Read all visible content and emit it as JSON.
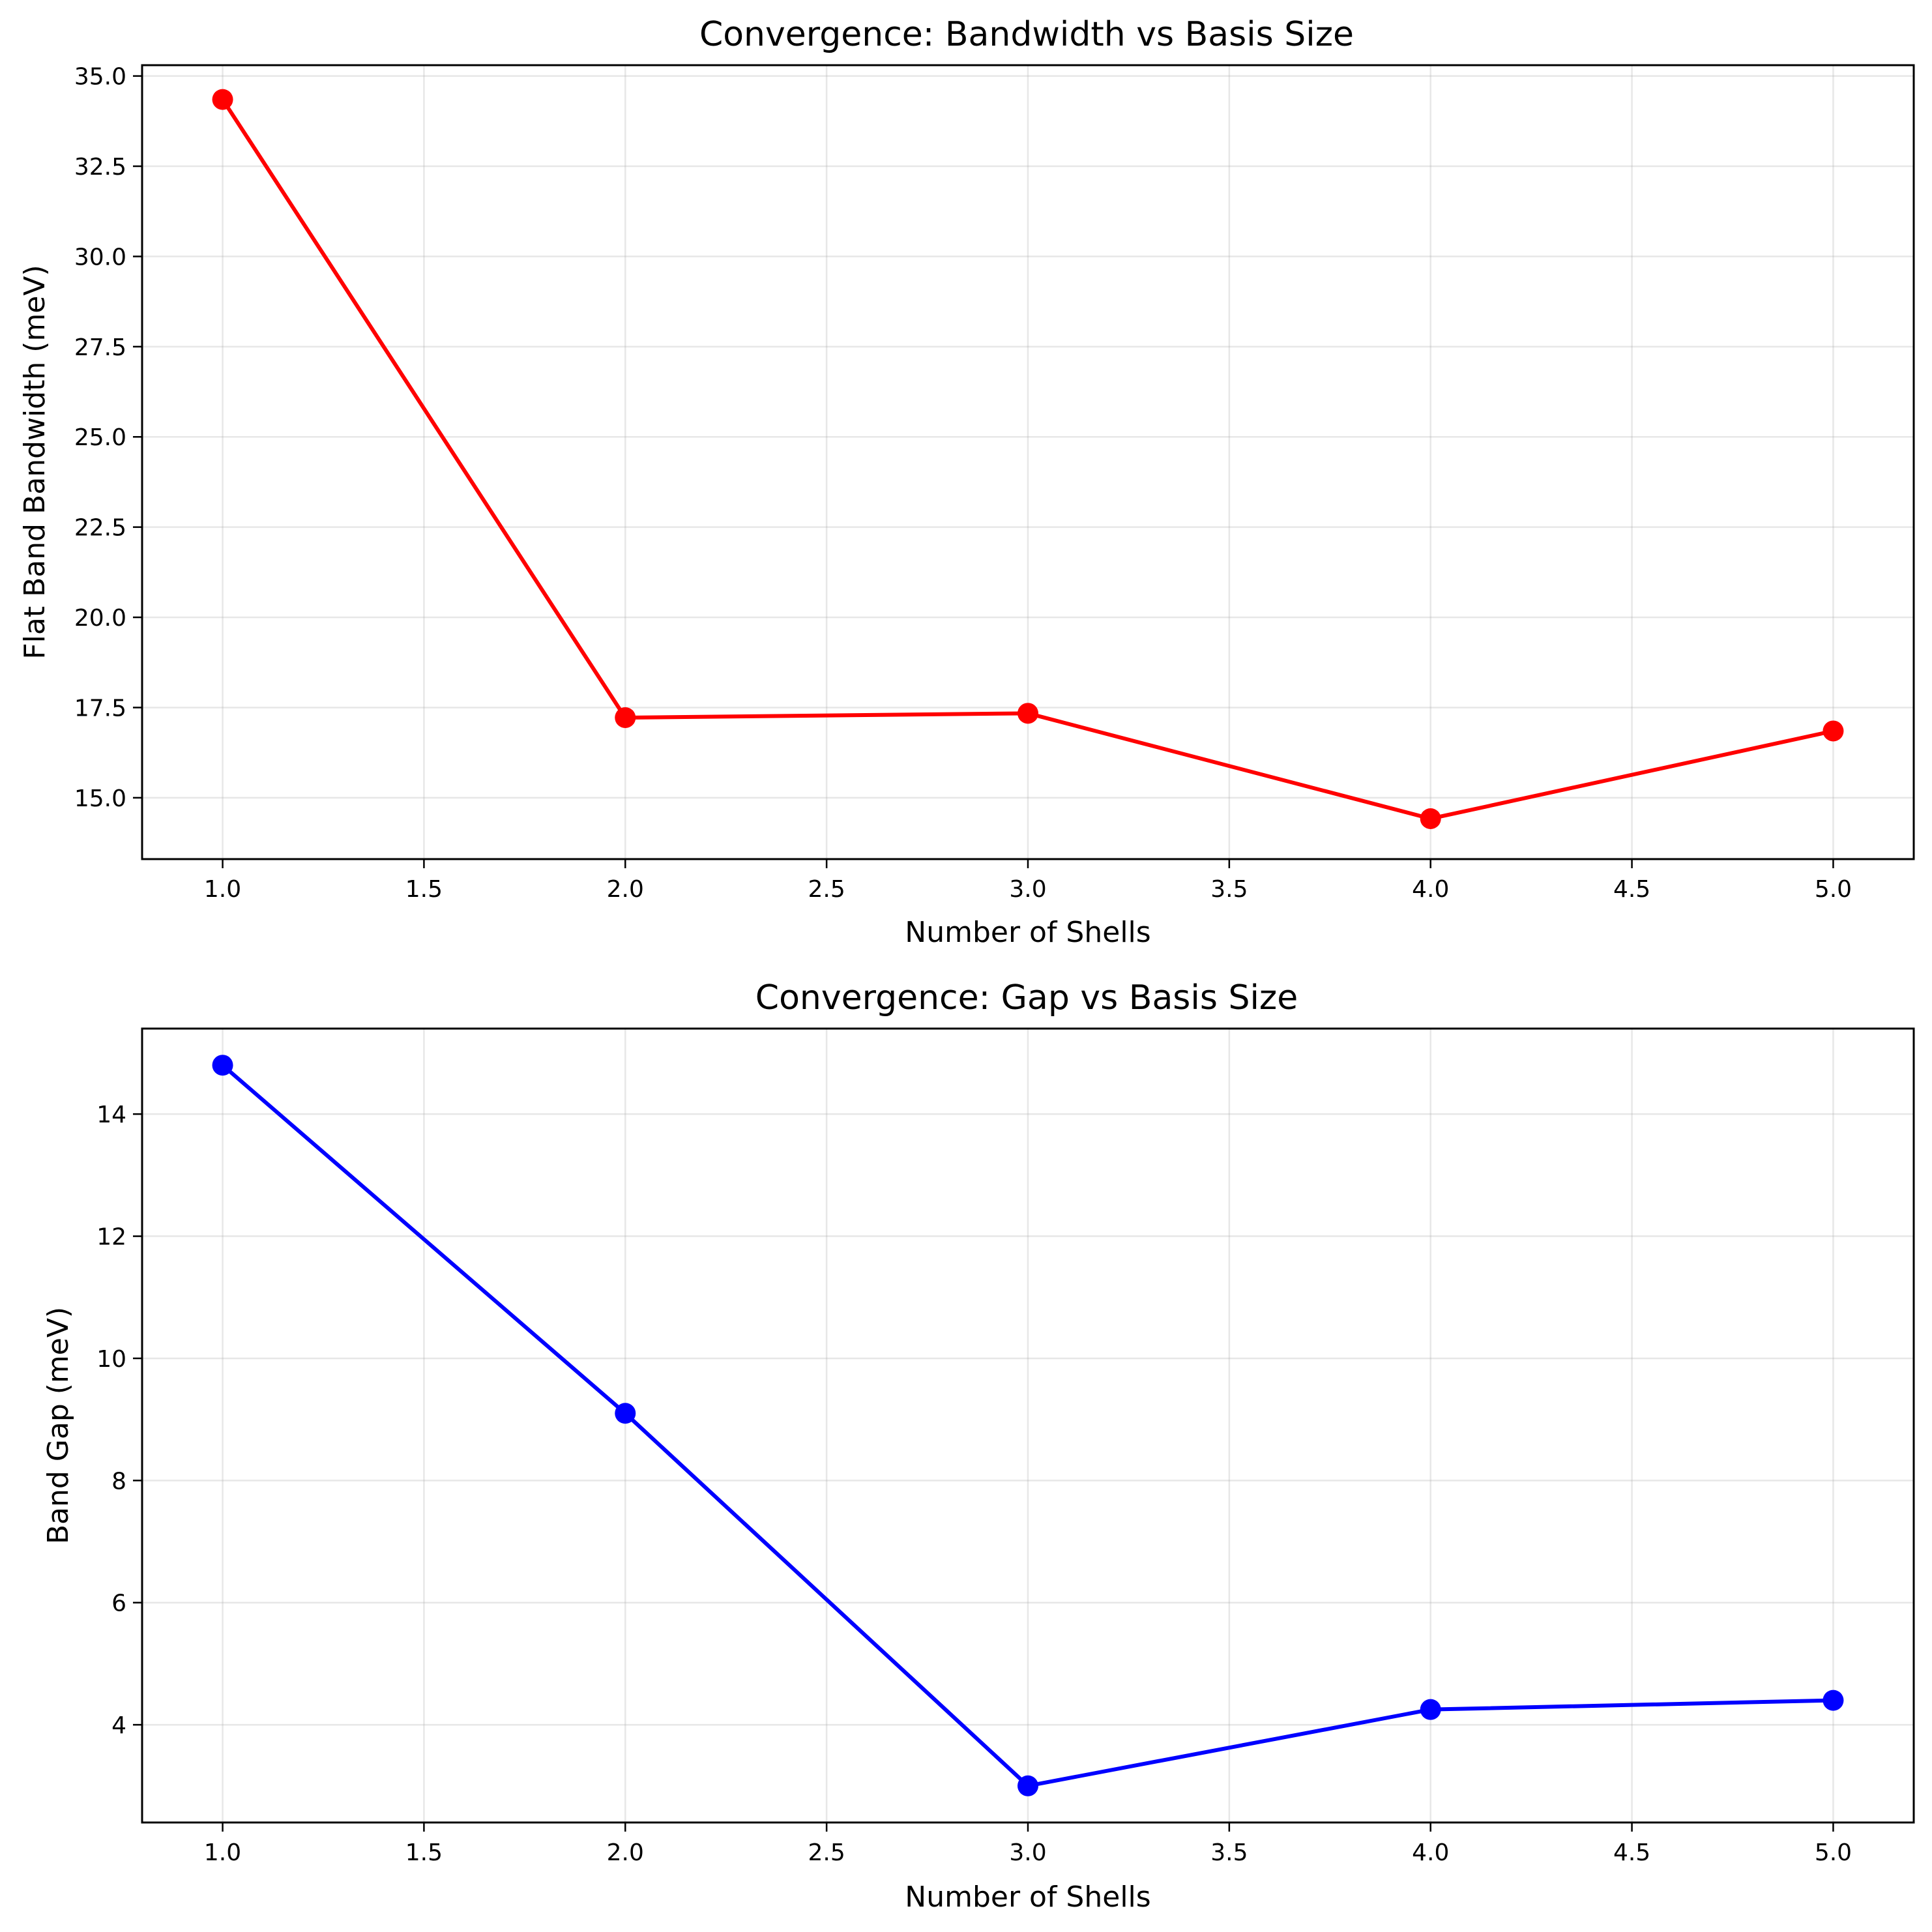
{
  "chart_data": [
    {
      "type": "line",
      "title": "Convergence: Bandwidth vs Basis Size",
      "xlabel": "Number of Shells",
      "ylabel": "Flat Band Bandwidth (meV)",
      "x": [
        1,
        2,
        3,
        4,
        5
      ],
      "series": [
        {
          "values": [
            34.35,
            17.22,
            17.34,
            14.42,
            16.85
          ],
          "color": "#ff0000"
        }
      ],
      "xlim": [
        0.8,
        5.2
      ],
      "ylim": [
        13.3,
        35.3
      ],
      "xticks": [
        1.0,
        1.5,
        2.0,
        2.5,
        3.0,
        3.5,
        4.0,
        4.5,
        5.0
      ],
      "xtick_labels": [
        "1.0",
        "1.5",
        "2.0",
        "2.5",
        "3.0",
        "3.5",
        "4.0",
        "4.5",
        "5.0"
      ],
      "yticks": [
        15.0,
        17.5,
        20.0,
        22.5,
        25.0,
        27.5,
        30.0,
        32.5,
        35.0
      ],
      "ytick_labels": [
        "15.0",
        "17.5",
        "20.0",
        "22.5",
        "25.0",
        "27.5",
        "30.0",
        "32.5",
        "35.0"
      ],
      "grid": true
    },
    {
      "type": "line",
      "title": "Convergence: Gap vs Basis Size",
      "xlabel": "Number of Shells",
      "ylabel": "Band Gap (meV)",
      "x": [
        1,
        2,
        3,
        4,
        5
      ],
      "series": [
        {
          "values": [
            14.8,
            9.1,
            3.0,
            4.25,
            4.4
          ],
          "color": "#0000ff"
        }
      ],
      "xlim": [
        0.8,
        5.2
      ],
      "ylim": [
        2.4,
        15.4
      ],
      "xticks": [
        1.0,
        1.5,
        2.0,
        2.5,
        3.0,
        3.5,
        4.0,
        4.5,
        5.0
      ],
      "xtick_labels": [
        "1.0",
        "1.5",
        "2.0",
        "2.5",
        "3.0",
        "3.5",
        "4.0",
        "4.5",
        "5.0"
      ],
      "yticks": [
        4,
        6,
        8,
        10,
        12,
        14
      ],
      "ytick_labels": [
        "4",
        "6",
        "8",
        "10",
        "12",
        "14"
      ],
      "grid": true
    }
  ]
}
